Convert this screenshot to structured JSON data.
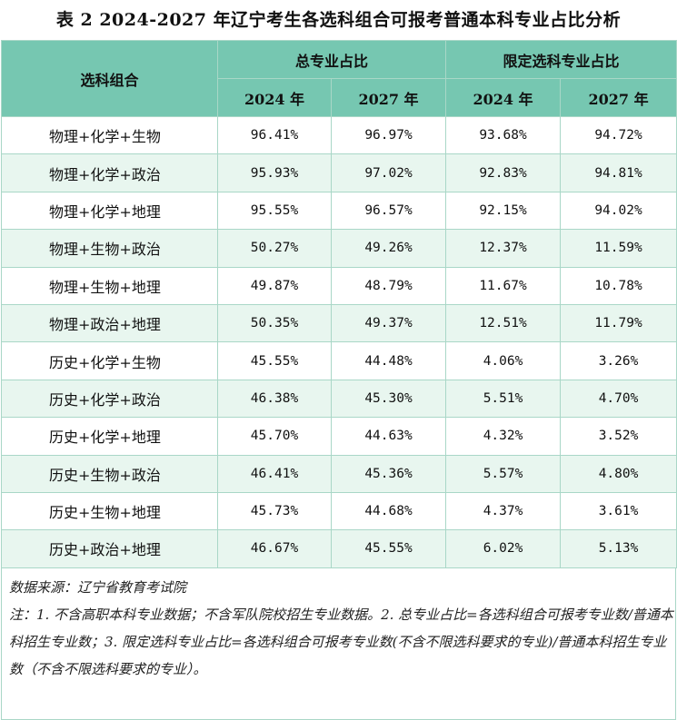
{
  "title": "表 2  2024-2027 年辽宁考生各选科组合可报考普通本科专业占比分析",
  "table": {
    "col_combo": "选科组合",
    "group_total": "总专业占比",
    "group_limited": "限定选科专业占比",
    "year_2024": "2024 年",
    "year_2027": "2027 年",
    "rows": [
      {
        "combo": "物理+化学+生物",
        "t2024": "96.41%",
        "t2027": "96.97%",
        "l2024": "93.68%",
        "l2027": "94.72%"
      },
      {
        "combo": "物理+化学+政治",
        "t2024": "95.93%",
        "t2027": "97.02%",
        "l2024": "92.83%",
        "l2027": "94.81%"
      },
      {
        "combo": "物理+化学+地理",
        "t2024": "95.55%",
        "t2027": "96.57%",
        "l2024": "92.15%",
        "l2027": "94.02%"
      },
      {
        "combo": "物理+生物+政治",
        "t2024": "50.27%",
        "t2027": "49.26%",
        "l2024": "12.37%",
        "l2027": "11.59%"
      },
      {
        "combo": "物理+生物+地理",
        "t2024": "49.87%",
        "t2027": "48.79%",
        "l2024": "11.67%",
        "l2027": "10.78%"
      },
      {
        "combo": "物理+政治+地理",
        "t2024": "50.35%",
        "t2027": "49.37%",
        "l2024": "12.51%",
        "l2027": "11.79%"
      },
      {
        "combo": "历史+化学+生物",
        "t2024": "45.55%",
        "t2027": "44.48%",
        "l2024": "4.06%",
        "l2027": "3.26%"
      },
      {
        "combo": "历史+化学+政治",
        "t2024": "46.38%",
        "t2027": "45.30%",
        "l2024": "5.51%",
        "l2027": "4.70%"
      },
      {
        "combo": "历史+化学+地理",
        "t2024": "45.70%",
        "t2027": "44.63%",
        "l2024": "4.32%",
        "l2027": "3.52%"
      },
      {
        "combo": "历史+生物+政治",
        "t2024": "46.41%",
        "t2027": "45.36%",
        "l2024": "5.57%",
        "l2027": "4.80%"
      },
      {
        "combo": "历史+生物+地理",
        "t2024": "45.73%",
        "t2027": "44.68%",
        "l2024": "4.37%",
        "l2027": "3.61%"
      },
      {
        "combo": "历史+政治+地理",
        "t2024": "46.67%",
        "t2027": "45.55%",
        "l2024": "6.02%",
        "l2027": "5.13%"
      }
    ]
  },
  "source": "数据来源：辽宁省教育考试院",
  "note": "注：1. 不含高职本科专业数据；不含军队院校招生专业数据。2. 总专业占比=各选科组合可报考专业数/普通本科招生专业数；3. 限定选科专业占比=各选科组合可报考专业数(不含不限选科要求的专业)/普通本科招生专业数（不含不限选科要求的专业）。"
}
